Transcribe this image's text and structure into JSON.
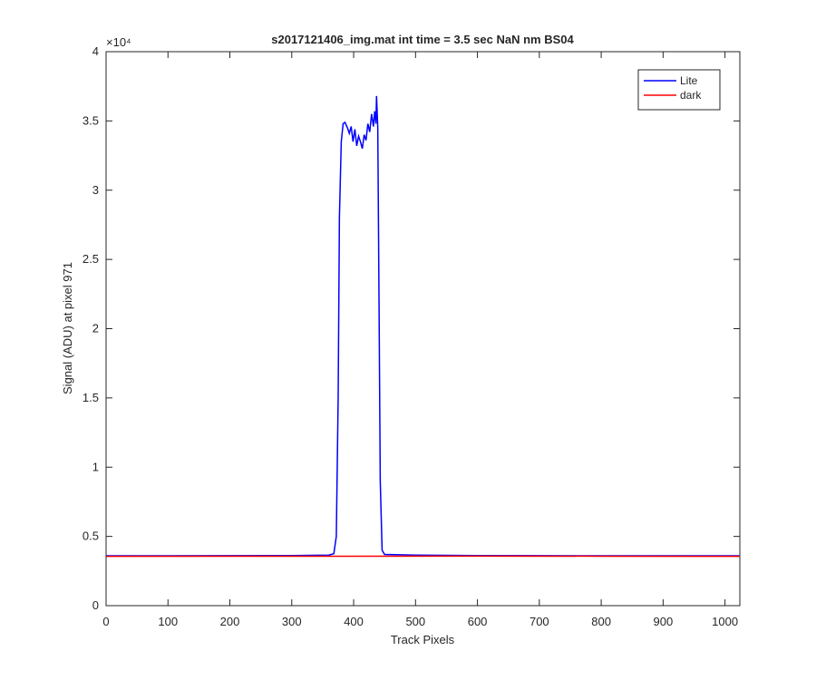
{
  "chart_data": {
    "type": "line",
    "title": "s2017121406_img.mat int time = 3.5 sec  NaN nm BS04",
    "x_label": "Track Pixels",
    "y_label": "Signal (ADU) at pixel 971",
    "y_multiplier": "×10⁴",
    "xlim": [
      0,
      1024
    ],
    "ylim": [
      0,
      40000
    ],
    "xticks": [
      0,
      100,
      200,
      300,
      400,
      500,
      600,
      700,
      800,
      900,
      1000
    ],
    "yticks": [
      {
        "value": 0,
        "label": "0"
      },
      {
        "value": 5000,
        "label": "0.5"
      },
      {
        "value": 10000,
        "label": "1"
      },
      {
        "value": 15000,
        "label": "1.5"
      },
      {
        "value": 20000,
        "label": "2"
      },
      {
        "value": 25000,
        "label": "2.5"
      },
      {
        "value": 30000,
        "label": "3"
      },
      {
        "value": 35000,
        "label": "3.5"
      },
      {
        "value": 40000,
        "label": "4"
      }
    ],
    "legend": "top-right",
    "series": [
      {
        "name": "Lite",
        "color": "#0000ff",
        "x": [
          0,
          100,
          200,
          300,
          360,
          368,
          372,
          375,
          377,
          380,
          383,
          386,
          390,
          393,
          396,
          399,
          402,
          405,
          408,
          411,
          414,
          417,
          420,
          423,
          426,
          429,
          432,
          434,
          436,
          437,
          439,
          441,
          443,
          446,
          450,
          500,
          600,
          700,
          800,
          900,
          1023
        ],
        "values": [
          3600,
          3600,
          3610,
          3620,
          3650,
          3750,
          5000,
          15000,
          28000,
          33500,
          34800,
          34900,
          34500,
          34100,
          34600,
          33500,
          34400,
          33200,
          33900,
          33500,
          33000,
          34000,
          33600,
          34800,
          34200,
          35500,
          34600,
          35700,
          34800,
          36800,
          34500,
          22000,
          9000,
          4000,
          3700,
          3650,
          3620,
          3610,
          3600,
          3600,
          3600
        ]
      },
      {
        "name": "dark",
        "color": "#ff0000",
        "x": [
          0,
          200,
          400,
          600,
          800,
          1023
        ],
        "values": [
          3560,
          3570,
          3570,
          3580,
          3570,
          3560
        ]
      }
    ]
  }
}
